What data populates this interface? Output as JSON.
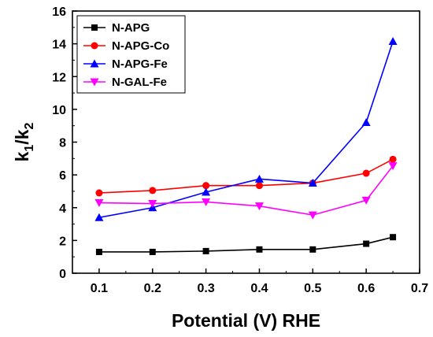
{
  "chart_data": {
    "type": "line",
    "xlabel": "Potential (V) RHE",
    "ylabel": {
      "main": "k",
      "sub1": "1",
      "slash": "/k",
      "sub2": "2"
    },
    "xlim": [
      0.05,
      0.7
    ],
    "ylim": [
      0,
      16
    ],
    "xticks": [
      0.1,
      0.2,
      0.3,
      0.4,
      0.5,
      0.6,
      0.7
    ],
    "yticks": [
      0,
      2,
      4,
      6,
      8,
      10,
      12,
      14,
      16
    ],
    "grid": false,
    "legend_position": "top-left",
    "x": [
      0.1,
      0.2,
      0.3,
      0.4,
      0.5,
      0.6,
      0.65
    ],
    "series": [
      {
        "name": "N-APG",
        "color": "#000000",
        "marker": "square",
        "values": [
          1.3,
          1.3,
          1.35,
          1.45,
          1.45,
          1.8,
          2.2
        ]
      },
      {
        "name": "N-APG-Co",
        "color": "#ff0000",
        "marker": "circle",
        "values": [
          4.9,
          5.05,
          5.35,
          5.35,
          5.5,
          6.1,
          6.95
        ]
      },
      {
        "name": "N-APG-Fe",
        "color": "#0000ff",
        "marker": "triangle-up",
        "values": [
          3.4,
          4.0,
          4.95,
          5.75,
          5.5,
          9.2,
          14.15
        ]
      },
      {
        "name": "N-GAL-Fe",
        "color": "#ff00ff",
        "marker": "triangle-down",
        "values": [
          4.3,
          4.25,
          4.35,
          4.1,
          3.55,
          4.45,
          6.55
        ]
      }
    ]
  }
}
